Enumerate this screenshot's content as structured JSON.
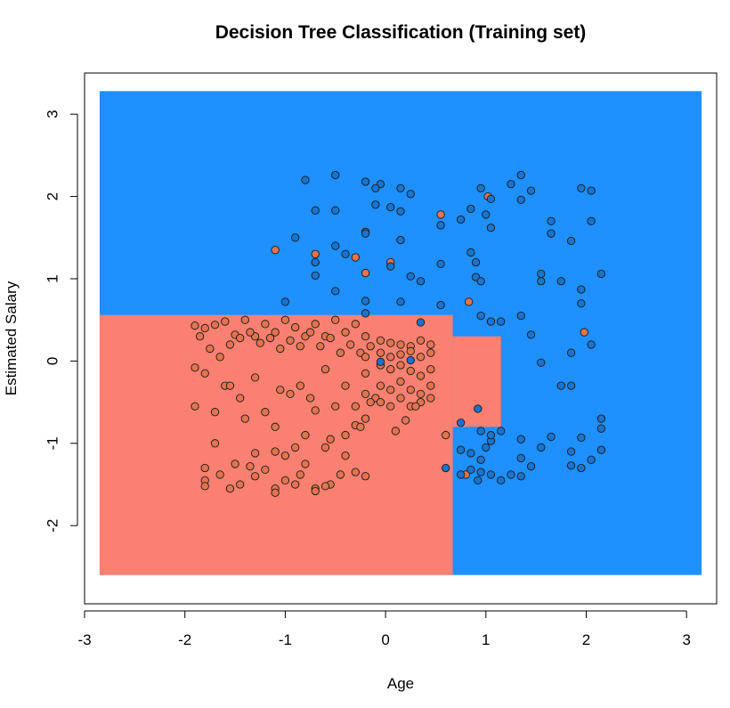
{
  "chart_data": {
    "type": "scatter",
    "title": "Decision Tree Classification (Training set)",
    "xlabel": "Age",
    "ylabel": "Estimated Salary",
    "xlim": [
      -3,
      3.3
    ],
    "ylim": [
      -2.95,
      3.5
    ],
    "x_ticks": [
      -3,
      -2,
      -1,
      0,
      1,
      2,
      3
    ],
    "y_ticks": [
      -2,
      -1,
      0,
      1,
      2,
      3
    ],
    "grid": false,
    "region_colors": {
      "0": "#FA8072",
      "1": "#1E90FF"
    },
    "point_colors": {
      "0": "#E2744F",
      "1": "#1874CD"
    },
    "point_stroke": "#1a1a1a",
    "regions": [
      {
        "class": 1,
        "x": [
          -2.85,
          3.15
        ],
        "y": [
          -2.6,
          3.28
        ]
      },
      {
        "class": 0,
        "x": [
          -2.85,
          0.67
        ],
        "y": [
          -2.6,
          0.56
        ]
      },
      {
        "class": 0,
        "x": [
          0.67,
          1.15
        ],
        "y": [
          -0.8,
          0.3
        ]
      }
    ],
    "series": [
      {
        "class": 0,
        "points": [
          [
            -1.9,
            0.43
          ],
          [
            -1.8,
            0.4
          ],
          [
            -1.7,
            0.44
          ],
          [
            -1.6,
            0.48
          ],
          [
            -1.5,
            0.32
          ],
          [
            -1.4,
            0.5
          ],
          [
            -1.3,
            0.3
          ],
          [
            -1.2,
            0.45
          ],
          [
            -1.1,
            0.35
          ],
          [
            -1.0,
            0.5
          ],
          [
            -0.9,
            0.41
          ],
          [
            -0.8,
            0.3
          ],
          [
            -0.7,
            0.45
          ],
          [
            -0.6,
            0.3
          ],
          [
            -0.5,
            0.5
          ],
          [
            -0.4,
            0.35
          ],
          [
            -0.3,
            0.45
          ],
          [
            -0.2,
            0.3
          ],
          [
            -1.85,
            0.3
          ],
          [
            -1.75,
            0.15
          ],
          [
            -1.65,
            0.05
          ],
          [
            -1.55,
            0.2
          ],
          [
            -1.45,
            0.28
          ],
          [
            -1.35,
            0.35
          ],
          [
            -1.25,
            0.22
          ],
          [
            -1.15,
            0.28
          ],
          [
            -1.05,
            0.15
          ],
          [
            -0.95,
            0.25
          ],
          [
            -0.85,
            0.18
          ],
          [
            -0.75,
            0.35
          ],
          [
            -0.65,
            0.18
          ],
          [
            -0.55,
            0.28
          ],
          [
            -0.45,
            0.1
          ],
          [
            -0.35,
            0.2
          ],
          [
            -0.25,
            0.1
          ],
          [
            -0.15,
            0.18
          ],
          [
            -1.9,
            -0.08
          ],
          [
            -1.8,
            -0.15
          ],
          [
            -1.6,
            -0.3
          ],
          [
            -1.45,
            -0.45
          ],
          [
            -1.3,
            -0.2
          ],
          [
            -1.2,
            -0.62
          ],
          [
            -1.05,
            -0.35
          ],
          [
            -0.95,
            -0.4
          ],
          [
            -0.85,
            -0.3
          ],
          [
            -0.75,
            -0.45
          ],
          [
            -0.6,
            -0.1
          ],
          [
            -0.5,
            -0.55
          ],
          [
            -0.4,
            -0.3
          ],
          [
            -0.3,
            -0.55
          ],
          [
            -0.2,
            -0.7
          ],
          [
            -0.1,
            -0.45
          ],
          [
            -1.9,
            -0.55
          ],
          [
            -1.7,
            -0.62
          ],
          [
            -1.55,
            -0.3
          ],
          [
            -1.4,
            -0.7
          ],
          [
            -1.1,
            -0.8
          ],
          [
            -0.8,
            -0.9
          ],
          [
            -0.7,
            -0.6
          ],
          [
            -0.55,
            -0.95
          ],
          [
            -0.4,
            -0.9
          ],
          [
            -0.3,
            -0.78
          ],
          [
            -0.25,
            -0.8
          ],
          [
            -0.15,
            -0.5
          ],
          [
            -1.8,
            -1.3
          ],
          [
            -1.7,
            -1.0
          ],
          [
            -1.5,
            -1.25
          ],
          [
            -1.3,
            -1.12
          ],
          [
            -1.1,
            -1.1
          ],
          [
            -1.0,
            -1.15
          ],
          [
            -0.9,
            -1.05
          ],
          [
            -0.8,
            -1.25
          ],
          [
            -0.6,
            -1.05
          ],
          [
            -0.4,
            -1.15
          ],
          [
            -0.3,
            -1.35
          ],
          [
            -0.2,
            -1.4
          ],
          [
            -1.8,
            -1.45
          ],
          [
            -1.65,
            -1.38
          ],
          [
            -1.55,
            -1.55
          ],
          [
            -1.45,
            -1.5
          ],
          [
            -1.3,
            -1.4
          ],
          [
            -1.1,
            -1.55
          ],
          [
            -1.0,
            -1.45
          ],
          [
            -0.85,
            -1.38
          ],
          [
            -0.7,
            -1.55
          ],
          [
            -0.55,
            -1.5
          ],
          [
            -0.45,
            -1.38
          ],
          [
            -1.8,
            -1.52
          ],
          [
            -1.35,
            -1.28
          ],
          [
            -1.1,
            -1.6
          ],
          [
            -0.7,
            -1.58
          ],
          [
            -0.6,
            -1.52
          ],
          [
            -1.2,
            -1.32
          ],
          [
            -0.9,
            -1.5
          ],
          [
            -0.05,
            0.25
          ],
          [
            0.05,
            0.22
          ],
          [
            0.15,
            0.2
          ],
          [
            0.25,
            0.18
          ],
          [
            0.35,
            0.25
          ],
          [
            0.45,
            0.2
          ],
          [
            -0.05,
            0.1
          ],
          [
            0.05,
            0.05
          ],
          [
            0.15,
            0.08
          ],
          [
            0.25,
            0.12
          ],
          [
            0.35,
            0.05
          ],
          [
            0.45,
            0.1
          ],
          [
            -0.05,
            -0.05
          ],
          [
            0.05,
            -0.1
          ],
          [
            0.15,
            -0.05
          ],
          [
            0.25,
            -0.12
          ],
          [
            0.35,
            -0.18
          ],
          [
            0.45,
            -0.1
          ],
          [
            -0.05,
            -0.3
          ],
          [
            0.05,
            -0.35
          ],
          [
            0.15,
            -0.25
          ],
          [
            0.25,
            -0.35
          ],
          [
            0.35,
            -0.4
          ],
          [
            0.45,
            -0.3
          ],
          [
            -0.05,
            -0.5
          ],
          [
            0.05,
            -0.55
          ],
          [
            0.15,
            -0.45
          ],
          [
            0.25,
            -0.55
          ],
          [
            0.35,
            -0.5
          ],
          [
            0.45,
            -0.45
          ],
          [
            0.1,
            -0.85
          ],
          [
            0.2,
            -0.72
          ],
          [
            0.3,
            -0.55
          ],
          [
            -0.2,
            0.05
          ],
          [
            -0.2,
            -0.15
          ],
          [
            -0.2,
            -0.4
          ],
          [
            0.6,
            -0.9
          ],
          [
            -1.1,
            1.35
          ],
          [
            -0.7,
            1.3
          ],
          [
            -0.3,
            1.26
          ],
          [
            -0.2,
            1.07
          ],
          [
            0.05,
            1.2
          ],
          [
            0.55,
            1.78
          ],
          [
            0.83,
            0.72
          ],
          [
            0.8,
            -1.38
          ],
          [
            1.02,
            2.0
          ],
          [
            1.98,
            0.35
          ]
        ]
      },
      {
        "class": 1,
        "points": [
          [
            -0.8,
            2.2
          ],
          [
            -0.5,
            2.26
          ],
          [
            -0.2,
            2.18
          ],
          [
            -0.05,
            2.15
          ],
          [
            0.15,
            2.1
          ],
          [
            0.25,
            2.03
          ],
          [
            -0.1,
            2.1
          ],
          [
            -0.7,
            1.83
          ],
          [
            -0.5,
            1.83
          ],
          [
            -0.1,
            1.9
          ],
          [
            0.05,
            1.87
          ],
          [
            0.15,
            1.82
          ],
          [
            0.55,
            1.65
          ],
          [
            -0.2,
            1.57
          ],
          [
            -0.9,
            1.5
          ],
          [
            -0.5,
            1.4
          ],
          [
            -0.2,
            1.55
          ],
          [
            0.15,
            1.47
          ],
          [
            0.55,
            1.18
          ],
          [
            -0.7,
            1.2
          ],
          [
            -0.4,
            1.3
          ],
          [
            0.05,
            1.15
          ],
          [
            0.25,
            1.03
          ],
          [
            0.35,
            0.97
          ],
          [
            -0.5,
            0.85
          ],
          [
            -0.2,
            0.73
          ],
          [
            -0.7,
            1.04
          ],
          [
            -1.0,
            0.72
          ],
          [
            -0.2,
            0.58
          ],
          [
            0.15,
            0.72
          ],
          [
            0.55,
            0.68
          ],
          [
            0.75,
            1.72
          ],
          [
            0.85,
            1.85
          ],
          [
            0.95,
            2.1
          ],
          [
            1.05,
            1.97
          ],
          [
            1.0,
            1.78
          ],
          [
            1.05,
            1.62
          ],
          [
            1.25,
            2.15
          ],
          [
            1.35,
            2.26
          ],
          [
            1.45,
            2.07
          ],
          [
            1.35,
            1.96
          ],
          [
            1.65,
            1.7
          ],
          [
            1.65,
            1.55
          ],
          [
            1.85,
            1.46
          ],
          [
            1.95,
            2.1
          ],
          [
            2.05,
            2.07
          ],
          [
            2.05,
            1.7
          ],
          [
            0.9,
            1.2
          ],
          [
            0.9,
            1.02
          ],
          [
            0.95,
            0.97
          ],
          [
            0.85,
            1.32
          ],
          [
            1.55,
            1.06
          ],
          [
            1.55,
            0.97
          ],
          [
            1.75,
            0.97
          ],
          [
            1.95,
            0.87
          ],
          [
            1.95,
            0.7
          ],
          [
            2.15,
            1.06
          ],
          [
            1.35,
            0.55
          ],
          [
            1.15,
            0.48
          ],
          [
            1.05,
            0.48
          ],
          [
            0.95,
            0.55
          ],
          [
            1.45,
            0.32
          ],
          [
            1.85,
            0.1
          ],
          [
            2.05,
            0.2
          ],
          [
            1.55,
            -0.02
          ],
          [
            1.75,
            -0.3
          ],
          [
            1.85,
            -0.3
          ],
          [
            2.15,
            -0.7
          ],
          [
            2.15,
            -0.82
          ],
          [
            1.95,
            -0.93
          ],
          [
            2.15,
            -1.08
          ],
          [
            2.05,
            -1.2
          ],
          [
            1.85,
            -1.1
          ],
          [
            1.65,
            -0.92
          ],
          [
            1.55,
            -1.05
          ],
          [
            1.35,
            -0.95
          ],
          [
            1.35,
            -1.18
          ],
          [
            1.25,
            -1.38
          ],
          [
            1.15,
            -1.45
          ],
          [
            1.45,
            -1.28
          ],
          [
            1.85,
            -1.27
          ],
          [
            1.95,
            -1.3
          ],
          [
            1.35,
            -1.4
          ],
          [
            0.75,
            -1.08
          ],
          [
            0.85,
            -1.12
          ],
          [
            0.95,
            -1.2
          ],
          [
            1.0,
            -1.05
          ],
          [
            1.05,
            -0.97
          ],
          [
            0.95,
            -0.85
          ],
          [
            1.05,
            -0.9
          ],
          [
            1.15,
            -0.85
          ],
          [
            0.95,
            -1.35
          ],
          [
            0.85,
            -1.32
          ],
          [
            0.75,
            -1.38
          ],
          [
            1.05,
            -1.38
          ],
          [
            0.92,
            -1.45
          ],
          [
            0.6,
            -1.3
          ],
          [
            0.35,
            0.47
          ],
          [
            0.75,
            -0.75
          ],
          [
            0.92,
            -0.58
          ],
          [
            -0.05,
            -0.01
          ],
          [
            0.25,
            0.01
          ]
        ]
      }
    ]
  }
}
